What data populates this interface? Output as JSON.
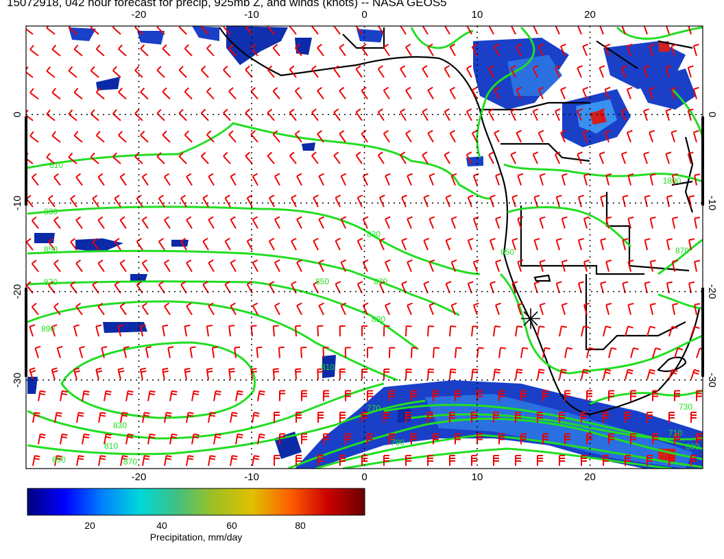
{
  "title": "15072918, 042 hour forecast for precip, 925mb Z, and winds (knots) -- NASA GEOS5",
  "map": {
    "lon_range": [
      -30,
      30
    ],
    "lat_range": [
      -40,
      10
    ],
    "lon_ticks": [
      "-20",
      "-10",
      "0",
      "10",
      "20"
    ],
    "lat_ticks": [
      "0",
      "-10",
      "-20",
      "-30"
    ],
    "contour_labels": [
      "810",
      "830",
      "850",
      "870",
      "890",
      "830",
      "850",
      "870",
      "890",
      "810",
      "830",
      "810",
      "890",
      "870",
      "770",
      "790",
      "730",
      "710",
      "690",
      "850",
      "870",
      "1800"
    ],
    "colors": {
      "contour": "#22dd22",
      "wind_barb": "#ee0000",
      "coast": "#000000",
      "precip_low": "#00008b",
      "precip_high": "#8b0000"
    },
    "marker_icon": "asterisk-marker"
  },
  "colorbar": {
    "ticks": [
      "20",
      "40",
      "60",
      "80"
    ],
    "title": "Precipitation, mm/day",
    "stops": [
      "#00007f",
      "#0000ff",
      "#0080ff",
      "#00d8d8",
      "#40c080",
      "#a0c020",
      "#e0c000",
      "#ff6000",
      "#cc0000",
      "#6a0000"
    ]
  }
}
